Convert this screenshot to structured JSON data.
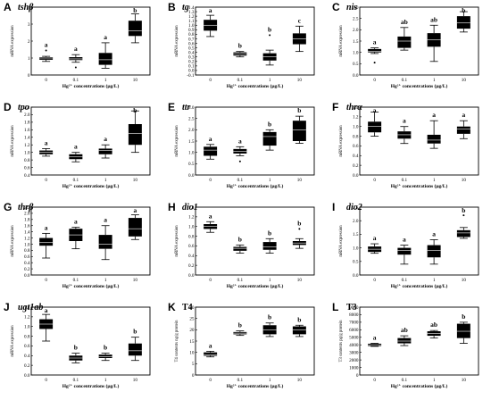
{
  "chart_data": [
    {
      "type": "box",
      "panel": "A",
      "gene": "tshβ",
      "italic": true,
      "ylabel": "mRNA expression",
      "xlabel": "Hg²⁺ concentrations (μg/L)",
      "categories": [
        "0",
        "0.1",
        "1",
        "10"
      ],
      "ylim": [
        0,
        4
      ],
      "yticks": [
        "0",
        "1",
        "2",
        "3",
        "4"
      ],
      "boxes": [
        {
          "min": 0.8,
          "q1": 0.9,
          "median": 1.0,
          "q3": 1.05,
          "max": 1.1,
          "outliers": [
            1.45
          ]
        },
        {
          "min": 0.75,
          "q1": 0.88,
          "median": 0.95,
          "q3": 1.05,
          "max": 1.2,
          "outliers": [
            0.45
          ]
        },
        {
          "min": 0.4,
          "q1": 0.6,
          "median": 0.9,
          "q3": 1.3,
          "max": 1.9,
          "outliers": []
        },
        {
          "min": 1.9,
          "q1": 2.3,
          "median": 2.6,
          "q3": 3.2,
          "max": 3.6,
          "outliers": []
        }
      ],
      "letters": [
        "a",
        "a",
        "a",
        "b"
      ]
    },
    {
      "type": "box",
      "panel": "B",
      "gene": "tg",
      "italic": true,
      "ylabel": "mRNA expression",
      "xlabel": "Hg²⁺ concentrations (μg/L)",
      "categories": [
        "0",
        "0.1",
        "1",
        "10"
      ],
      "ylim": [
        -0.1,
        1.4
      ],
      "yticks": [
        "-0.1",
        "0.0",
        "0.1",
        "0.2",
        "0.3",
        "0.4",
        "0.5",
        "0.6",
        "0.7",
        "0.8",
        "0.9",
        "1.0",
        "1.1",
        "1.2",
        "1.3",
        "1.4"
      ],
      "boxes": [
        {
          "min": 0.75,
          "q1": 0.88,
          "median": 1.0,
          "q3": 1.12,
          "max": 1.22,
          "outliers": []
        },
        {
          "min": 0.3,
          "q1": 0.33,
          "median": 0.37,
          "q3": 0.4,
          "max": 0.42,
          "outliers": []
        },
        {
          "min": 0.12,
          "q1": 0.22,
          "median": 0.3,
          "q3": 0.38,
          "max": 0.45,
          "outliers": [
            0.78
          ]
        },
        {
          "min": 0.42,
          "q1": 0.58,
          "median": 0.7,
          "q3": 0.82,
          "max": 0.98,
          "outliers": []
        }
      ],
      "letters": [
        "a",
        "b",
        "b",
        "c"
      ]
    },
    {
      "type": "box",
      "panel": "C",
      "gene": "nis",
      "italic": true,
      "ylabel": "mRNA expression",
      "xlabel": "Hg²⁺ concentrations (μg/L)",
      "categories": [
        "0",
        "0.1",
        "1",
        "10"
      ],
      "ylim": [
        0,
        3
      ],
      "yticks": [
        "0.0",
        "0.5",
        "1.0",
        "1.5",
        "2.0",
        "2.5",
        "3.0"
      ],
      "boxes": [
        {
          "min": 0.95,
          "q1": 1.0,
          "median": 1.05,
          "q3": 1.15,
          "max": 1.2,
          "outliers": [
            0.55
          ]
        },
        {
          "min": 1.1,
          "q1": 1.2,
          "median": 1.5,
          "q3": 1.7,
          "max": 2.1,
          "outliers": []
        },
        {
          "min": 0.6,
          "q1": 1.25,
          "median": 1.55,
          "q3": 1.85,
          "max": 2.2,
          "outliers": []
        },
        {
          "min": 1.9,
          "q1": 2.05,
          "median": 2.3,
          "q3": 2.6,
          "max": 2.8,
          "outliers": []
        }
      ],
      "letters": [
        "a",
        "ab",
        "ab",
        "b"
      ]
    },
    {
      "type": "box",
      "panel": "D",
      "gene": "tpo",
      "italic": true,
      "ylabel": "mRNA expression",
      "xlabel": "Hg²⁺ concentrations (μg/L)",
      "categories": [
        "0",
        "0.1",
        "1",
        "10"
      ],
      "ylim": [
        0.4,
        2.2
      ],
      "yticks": [
        "0.4",
        "0.6",
        "0.8",
        "1.0",
        "1.2",
        "1.4",
        "1.6",
        "1.8",
        "2.0",
        "2.2"
      ],
      "boxes": [
        {
          "min": 0.9,
          "q1": 0.95,
          "median": 1.0,
          "q3": 1.05,
          "max": 1.1,
          "outliers": []
        },
        {
          "min": 0.75,
          "q1": 0.82,
          "median": 0.88,
          "q3": 0.95,
          "max": 1.0,
          "outliers": []
        },
        {
          "min": 0.85,
          "q1": 0.95,
          "median": 1.05,
          "q3": 1.1,
          "max": 1.2,
          "outliers": []
        },
        {
          "min": 1.0,
          "q1": 1.2,
          "median": 1.5,
          "q3": 1.75,
          "max": 2.1,
          "outliers": []
        }
      ],
      "letters": [
        "a",
        "a",
        "a",
        "b"
      ]
    },
    {
      "type": "box",
      "panel": "E",
      "gene": "ttr",
      "italic": true,
      "ylabel": "mRNA expression",
      "xlabel": "Hg²⁺ concentrations (μg/L)",
      "categories": [
        "0",
        "0.1",
        "1",
        "10"
      ],
      "ylim": [
        0,
        3
      ],
      "yticks": [
        "0.0",
        "0.5",
        "1.0",
        "1.5",
        "2.0",
        "2.5",
        "3.0"
      ],
      "boxes": [
        {
          "min": 0.7,
          "q1": 0.85,
          "median": 1.1,
          "q3": 1.25,
          "max": 1.35,
          "outliers": []
        },
        {
          "min": 0.85,
          "q1": 0.95,
          "median": 1.05,
          "q3": 1.15,
          "max": 1.25,
          "outliers": [
            0.6
          ]
        },
        {
          "min": 1.1,
          "q1": 1.3,
          "median": 1.7,
          "q3": 1.9,
          "max": 2.0,
          "outliers": []
        },
        {
          "min": 1.4,
          "q1": 1.5,
          "median": 2.0,
          "q3": 2.4,
          "max": 2.6,
          "outliers": []
        }
      ],
      "letters": [
        "a",
        "a",
        "b",
        "b"
      ]
    },
    {
      "type": "box",
      "panel": "F",
      "gene": "thrα",
      "italic": true,
      "ylabel": "mRNA expression",
      "xlabel": "Hg²⁺ concentrations (μg/L)",
      "categories": [
        "0",
        "0.1",
        "1",
        "10"
      ],
      "ylim": [
        0,
        1.4
      ],
      "yticks": [
        "0.0",
        "0.2",
        "0.4",
        "0.6",
        "0.8",
        "1.0",
        "1.2",
        "1.4"
      ],
      "boxes": [
        {
          "min": 0.8,
          "q1": 0.88,
          "median": 1.0,
          "q3": 1.1,
          "max": 1.3,
          "outliers": []
        },
        {
          "min": 0.65,
          "q1": 0.75,
          "median": 0.83,
          "q3": 0.9,
          "max": 1.0,
          "outliers": []
        },
        {
          "min": 0.55,
          "q1": 0.65,
          "median": 0.72,
          "q3": 0.83,
          "max": 1.12,
          "outliers": []
        },
        {
          "min": 0.75,
          "q1": 0.85,
          "median": 0.95,
          "q3": 1.0,
          "max": 1.12,
          "outliers": []
        }
      ],
      "letters": [
        "a",
        "a",
        "a",
        "a"
      ]
    },
    {
      "type": "box",
      "panel": "G",
      "gene": "thrβ",
      "italic": true,
      "ylabel": "mRNA expression",
      "xlabel": "Hg²⁺ concentrations (μg/L)",
      "categories": [
        "0",
        "0.1",
        "1",
        "10"
      ],
      "ylim": [
        0,
        2.2
      ],
      "yticks": [
        "0.0",
        "0.2",
        "0.4",
        "0.6",
        "0.8",
        "1.0",
        "1.2",
        "1.4",
        "1.6",
        "1.8",
        "2.0",
        "2.2"
      ],
      "boxes": [
        {
          "min": 0.55,
          "q1": 0.95,
          "median": 1.05,
          "q3": 1.2,
          "max": 1.35,
          "outliers": []
        },
        {
          "min": 0.85,
          "q1": 1.1,
          "median": 1.3,
          "q3": 1.5,
          "max": 1.55,
          "outliers": []
        },
        {
          "min": 0.5,
          "q1": 0.85,
          "median": 1.0,
          "q3": 1.3,
          "max": 1.6,
          "outliers": []
        },
        {
          "min": 1.15,
          "q1": 1.25,
          "median": 1.5,
          "q3": 1.85,
          "max": 1.95,
          "outliers": []
        }
      ],
      "letters": [
        "a",
        "a",
        "a",
        "a"
      ]
    },
    {
      "type": "box",
      "panel": "H",
      "gene": "dio1",
      "italic": true,
      "ylabel": "mRNA expression",
      "xlabel": "Hg²⁺ concentrations (μg/L)",
      "categories": [
        "0",
        "0.1",
        "1",
        "10"
      ],
      "ylim": [
        0,
        1.4
      ],
      "yticks": [
        "0.0",
        "0.2",
        "0.4",
        "0.6",
        "0.8",
        "1.0",
        "1.2",
        "1.4"
      ],
      "boxes": [
        {
          "min": 0.88,
          "q1": 0.95,
          "median": 1.0,
          "q3": 1.05,
          "max": 1.1,
          "outliers": []
        },
        {
          "min": 0.45,
          "q1": 0.5,
          "median": 0.55,
          "q3": 0.58,
          "max": 0.62,
          "outliers": []
        },
        {
          "min": 0.45,
          "q1": 0.52,
          "median": 0.58,
          "q3": 0.68,
          "max": 0.75,
          "outliers": []
        },
        {
          "min": 0.55,
          "q1": 0.62,
          "median": 0.66,
          "q3": 0.7,
          "max": 0.75,
          "outliers": [
            0.95
          ]
        }
      ],
      "letters": [
        "a",
        "b",
        "b",
        "b"
      ]
    },
    {
      "type": "box",
      "panel": "I",
      "gene": "dio2",
      "italic": true,
      "ylabel": "mRNA expression",
      "xlabel": "Hg²⁺ concentrations (μg/L)",
      "categories": [
        "0",
        "0.1",
        "1",
        "10"
      ],
      "ylim": [
        0,
        2.5
      ],
      "yticks": [
        "0.0",
        "0.5",
        "1.0",
        "1.5",
        "2.0",
        "2.5"
      ],
      "boxes": [
        {
          "min": 0.8,
          "q1": 0.85,
          "median": 0.95,
          "q3": 1.05,
          "max": 1.15,
          "outliers": []
        },
        {
          "min": 0.4,
          "q1": 0.75,
          "median": 0.9,
          "q3": 1.0,
          "max": 1.1,
          "outliers": []
        },
        {
          "min": 0.4,
          "q1": 0.65,
          "median": 0.9,
          "q3": 1.1,
          "max": 1.3,
          "outliers": []
        },
        {
          "min": 1.35,
          "q1": 1.4,
          "median": 1.55,
          "q3": 1.65,
          "max": 1.75,
          "outliers": [
            2.2
          ]
        }
      ],
      "letters": [
        "a",
        "a",
        "a",
        "b"
      ]
    },
    {
      "type": "box",
      "panel": "J",
      "gene": "ugt1ab",
      "italic": true,
      "ylabel": "mRNA expression",
      "xlabel": "Hg²⁺ concentrations (μg/L)",
      "categories": [
        "0",
        "0.1",
        "1",
        "10"
      ],
      "ylim": [
        0,
        1.4
      ],
      "yticks": [
        "0.0",
        "0.2",
        "0.4",
        "0.6",
        "0.8",
        "1.0",
        "1.2",
        "1.4"
      ],
      "boxes": [
        {
          "min": 0.7,
          "q1": 0.95,
          "median": 1.05,
          "q3": 1.15,
          "max": 1.25,
          "outliers": []
        },
        {
          "min": 0.25,
          "q1": 0.3,
          "median": 0.35,
          "q3": 0.4,
          "max": 0.45,
          "outliers": []
        },
        {
          "min": 0.3,
          "q1": 0.35,
          "median": 0.38,
          "q3": 0.42,
          "max": 0.45,
          "outliers": []
        },
        {
          "min": 0.3,
          "q1": 0.4,
          "median": 0.5,
          "q3": 0.65,
          "max": 0.78,
          "outliers": []
        }
      ],
      "letters": [
        "a",
        "b",
        "b",
        "b"
      ]
    },
    {
      "type": "box",
      "panel": "K",
      "gene": "T4",
      "italic": false,
      "ylabel": "T4 contents ng/g protein",
      "xlabel": "Hg²⁺ concentrations (μg/L)",
      "categories": [
        "0",
        "0.1",
        "1",
        "10"
      ],
      "ylim": [
        0,
        30
      ],
      "yticks": [
        "0",
        "5",
        "10",
        "15",
        "20",
        "25",
        "30"
      ],
      "boxes": [
        {
          "min": 8,
          "q1": 8.5,
          "median": 9,
          "q3": 10,
          "max": 10.5,
          "outliers": []
        },
        {
          "min": 17.5,
          "q1": 18,
          "median": 18.5,
          "q3": 19,
          "max": 19.5,
          "outliers": []
        },
        {
          "min": 17,
          "q1": 18,
          "median": 20,
          "q3": 22,
          "max": 23,
          "outliers": []
        },
        {
          "min": 17,
          "q1": 18,
          "median": 20,
          "q3": 21.5,
          "max": 22,
          "outliers": []
        }
      ],
      "letters": [
        "a",
        "b",
        "b",
        "b"
      ]
    },
    {
      "type": "box",
      "panel": "L",
      "gene": "T3",
      "italic": false,
      "ylabel": "T3 contents pg/g protein",
      "xlabel": "Hg²⁺ concentrations (μg/L)",
      "categories": [
        "0",
        "0.1",
        "1",
        "10"
      ],
      "ylim": [
        0,
        9000
      ],
      "yticks": [
        "0",
        "1000",
        "2000",
        "3000",
        "4000",
        "5000",
        "6000",
        "7000",
        "8000",
        "9000"
      ],
      "boxes": [
        {
          "min": 3800,
          "q1": 3850,
          "median": 4000,
          "q3": 4150,
          "max": 4200,
          "outliers": []
        },
        {
          "min": 3900,
          "q1": 4200,
          "median": 4500,
          "q3": 4900,
          "max": 5200,
          "outliers": []
        },
        {
          "min": 4900,
          "q1": 5200,
          "median": 5500,
          "q3": 5800,
          "max": 5900,
          "outliers": []
        },
        {
          "min": 4200,
          "q1": 4900,
          "median": 5800,
          "q3": 6800,
          "max": 7000,
          "outliers": []
        }
      ],
      "letters": [
        "a",
        "ab",
        "ab",
        "b"
      ]
    }
  ]
}
